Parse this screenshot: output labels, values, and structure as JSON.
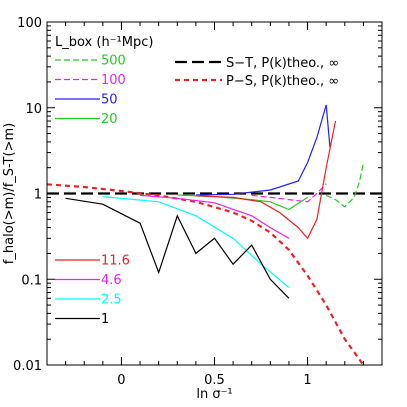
{
  "chart_data": {
    "type": "line",
    "xlabel": "ln σ⁻¹",
    "ylabel": "f_halo(>m)/f_S-T(>m)",
    "xlim": [
      -0.4,
      1.4
    ],
    "ylim": [
      0.01,
      100
    ],
    "yscale": "log",
    "x_ticks": [
      {
        "value": 0,
        "label": "0"
      },
      {
        "value": 0.5,
        "label": "0.5"
      },
      {
        "value": 1,
        "label": "1"
      }
    ],
    "y_ticks": [
      {
        "value": 0.01,
        "label": "0.01"
      },
      {
        "value": 0.1,
        "label": "0.1"
      },
      {
        "value": 1,
        "label": "1"
      },
      {
        "value": 10,
        "label": "10"
      },
      {
        "value": 100,
        "label": "100"
      }
    ],
    "legend_title": "L_box (h⁻¹Mpc)",
    "legend_box_left": [
      {
        "name": "500",
        "color": "#22cc22",
        "dash": "dashed"
      },
      {
        "name": "100",
        "color": "#ee22ee",
        "dash": "dashed"
      },
      {
        "name": "50",
        "color": "#2222ee",
        "dash": "solid"
      },
      {
        "name": "20",
        "color": "#22cc22",
        "dash": "solid"
      },
      {
        "name": "11.6",
        "color": "#ee2222",
        "dash": "solid"
      },
      {
        "name": "4.6",
        "color": "#ee22ee",
        "dash": "solid"
      },
      {
        "name": "2.5",
        "color": "#00ffff",
        "dash": "solid"
      },
      {
        "name": "1",
        "color": "#000000",
        "dash": "solid"
      }
    ],
    "legend_right": [
      {
        "name": "S−T, P(k)theo., ∞",
        "color": "#000000",
        "dash": "long-dash"
      },
      {
        "name": "P−S, P(k)theo., ∞",
        "color": "#ee2222",
        "dash": "short-dash"
      }
    ],
    "series": [
      {
        "name": "S−T, P(k)theo., ∞",
        "color": "#000000",
        "dash": "long-dash",
        "x": [
          -0.4,
          1.4
        ],
        "y": [
          1.0,
          1.0
        ]
      },
      {
        "name": "P−S, P(k)theo., ∞",
        "color": "#ee2222",
        "dash": "short-dash",
        "x": [
          -0.4,
          -0.2,
          0.0,
          0.2,
          0.4,
          0.6,
          0.7,
          0.8,
          0.9,
          1.0,
          1.1,
          1.2,
          1.3
        ],
        "y": [
          1.28,
          1.19,
          1.07,
          0.95,
          0.8,
          0.6,
          0.48,
          0.35,
          0.22,
          0.11,
          0.05,
          0.02,
          0.01
        ]
      },
      {
        "name": "500",
        "color": "#22cc22",
        "dash": "dashed",
        "x": [
          1.1,
          1.15,
          1.2,
          1.25,
          1.28,
          1.3
        ],
        "y": [
          0.95,
          0.85,
          0.7,
          0.9,
          1.4,
          2.3
        ]
      },
      {
        "name": "100",
        "color": "#ee22ee",
        "dash": "dashed",
        "x": [
          0.7,
          0.8,
          0.9,
          1.0,
          1.05,
          1.1
        ],
        "y": [
          0.95,
          0.9,
          0.85,
          0.8,
          1.0,
          1.3
        ]
      },
      {
        "name": "50",
        "color": "#2222ee",
        "dash": "solid",
        "x": [
          0.4,
          0.6,
          0.8,
          0.95,
          1.0,
          1.05,
          1.1,
          1.12
        ],
        "y": [
          0.96,
          0.98,
          1.1,
          1.4,
          2.3,
          4.5,
          10.8,
          3.5
        ]
      },
      {
        "name": "20",
        "color": "#22cc22",
        "dash": "solid",
        "x": [
          0.3,
          0.5,
          0.7,
          0.8,
          0.9,
          1.0
        ],
        "y": [
          0.96,
          0.92,
          0.85,
          0.8,
          0.65,
          0.9
        ]
      },
      {
        "name": "11.6",
        "color": "#ee2222",
        "dash": "solid",
        "x": [
          0.4,
          0.6,
          0.75,
          0.85,
          0.95,
          1.0,
          1.05,
          1.1,
          1.15
        ],
        "y": [
          0.94,
          0.9,
          0.8,
          0.6,
          0.4,
          0.3,
          0.5,
          2.0,
          7.0
        ]
      },
      {
        "name": "4.6",
        "color": "#ee22ee",
        "dash": "solid",
        "x": [
          0.1,
          0.3,
          0.5,
          0.7,
          0.8,
          0.9
        ],
        "y": [
          0.95,
          0.88,
          0.78,
          0.55,
          0.4,
          0.3
        ]
      },
      {
        "name": "2.5",
        "color": "#00ffff",
        "dash": "solid",
        "x": [
          -0.1,
          0.2,
          0.4,
          0.6,
          0.75,
          0.9
        ],
        "y": [
          0.92,
          0.8,
          0.55,
          0.3,
          0.15,
          0.08
        ]
      },
      {
        "name": "1",
        "color": "#000000",
        "dash": "solid",
        "x": [
          -0.3,
          -0.1,
          0.1,
          0.2,
          0.3,
          0.4,
          0.5,
          0.6,
          0.7,
          0.8,
          0.9
        ],
        "y": [
          0.88,
          0.75,
          0.45,
          0.12,
          0.55,
          0.2,
          0.3,
          0.15,
          0.25,
          0.1,
          0.06
        ]
      }
    ]
  }
}
